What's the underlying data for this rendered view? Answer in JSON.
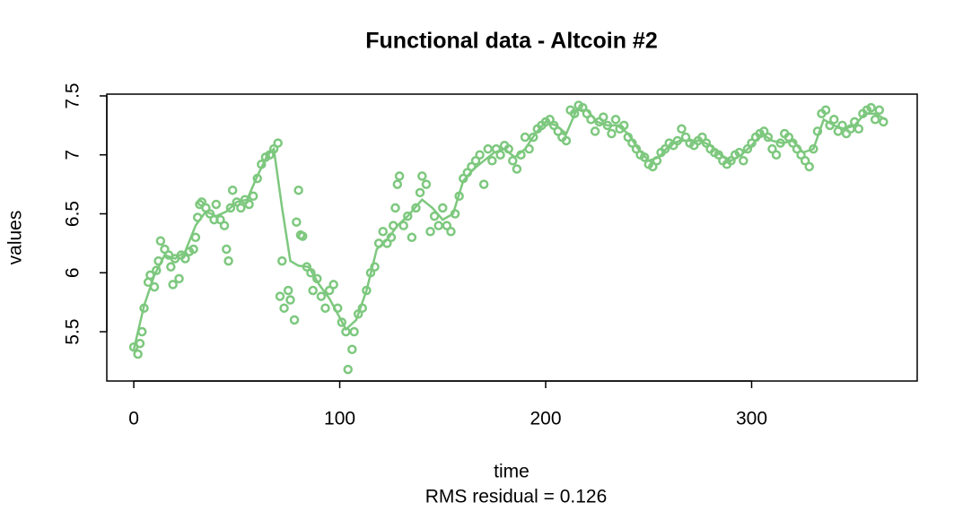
{
  "chart_data": {
    "type": "scatter",
    "title": "Functional data - Altcoin #2",
    "xlabel": "time",
    "ylabel": "values",
    "subtitle": "RMS residual = 0.126",
    "xlim": [
      -13.1,
      380.4
    ],
    "ylim": [
      5.082,
      7.515
    ],
    "xticks": [
      0,
      100,
      200,
      300
    ],
    "yticks": [
      5.5,
      6.0,
      6.5,
      7.0,
      7.5
    ],
    "series": [
      {
        "mode": "points",
        "color": "#7dc87e",
        "x": [
          0,
          2,
          3,
          4,
          5,
          7,
          8,
          10,
          11,
          12,
          13,
          15,
          17,
          18,
          19,
          20,
          22,
          23,
          25,
          27,
          29,
          30,
          31,
          32,
          33,
          35,
          37,
          39,
          40,
          42,
          44,
          45,
          46,
          47,
          48,
          50,
          52,
          54,
          56,
          58,
          60,
          62,
          64,
          66,
          68,
          70,
          71,
          72,
          73,
          75,
          76,
          78,
          79,
          80,
          81,
          82,
          84,
          86,
          87,
          89,
          91,
          93,
          95,
          97,
          99,
          101,
          103,
          104,
          106,
          107,
          109,
          111,
          113,
          115,
          117,
          119,
          121,
          123,
          125,
          126,
          127,
          128,
          129,
          131,
          133,
          135,
          137,
          139,
          140,
          142,
          144,
          146,
          148,
          150,
          152,
          154,
          156,
          158,
          160,
          162,
          164,
          166,
          168,
          170,
          172,
          174,
          176,
          178,
          180,
          182,
          184,
          186,
          188,
          190,
          192,
          194,
          196,
          198,
          200,
          202,
          204,
          206,
          208,
          210,
          212,
          214,
          216,
          218,
          220,
          222,
          224,
          226,
          228,
          230,
          232,
          234,
          236,
          238,
          240,
          242,
          244,
          246,
          248,
          250,
          252,
          254,
          256,
          258,
          260,
          262,
          264,
          266,
          268,
          270,
          272,
          274,
          276,
          278,
          280,
          282,
          284,
          286,
          288,
          290,
          292,
          294,
          296,
          298,
          300,
          302,
          304,
          306,
          308,
          310,
          312,
          314,
          316,
          318,
          320,
          322,
          324,
          326,
          328,
          330,
          332,
          334,
          336,
          338,
          340,
          342,
          344,
          346,
          348,
          350,
          352,
          354,
          356,
          358,
          360,
          362,
          364
        ],
        "values": [
          5.37,
          5.31,
          5.4,
          5.5,
          5.7,
          5.92,
          5.98,
          5.88,
          6.02,
          6.1,
          6.27,
          6.2,
          6.15,
          6.05,
          5.9,
          6.12,
          5.95,
          6.15,
          6.12,
          6.18,
          6.2,
          6.3,
          6.47,
          6.58,
          6.6,
          6.55,
          6.5,
          6.45,
          6.58,
          6.45,
          6.4,
          6.2,
          6.1,
          6.55,
          6.7,
          6.6,
          6.55,
          6.62,
          6.58,
          6.65,
          6.8,
          6.92,
          6.98,
          7.0,
          7.05,
          7.1,
          5.8,
          6.1,
          5.7,
          5.85,
          5.77,
          5.6,
          6.43,
          6.7,
          6.32,
          6.31,
          6.05,
          6.0,
          5.85,
          5.95,
          5.8,
          5.7,
          5.85,
          5.9,
          5.7,
          5.58,
          5.5,
          5.18,
          5.35,
          5.5,
          5.65,
          5.7,
          5.85,
          6.0,
          6.05,
          6.25,
          6.35,
          6.25,
          6.3,
          6.4,
          6.55,
          6.75,
          6.82,
          6.4,
          6.48,
          6.3,
          6.55,
          6.68,
          6.82,
          6.75,
          6.35,
          6.48,
          6.4,
          6.55,
          6.4,
          6.35,
          6.5,
          6.65,
          6.8,
          6.85,
          6.9,
          6.95,
          7.0,
          6.75,
          7.05,
          6.95,
          7.05,
          7.0,
          7.08,
          7.05,
          6.95,
          6.88,
          7.0,
          7.15,
          7.05,
          7.15,
          7.22,
          7.25,
          7.28,
          7.3,
          7.25,
          7.2,
          7.15,
          7.12,
          7.38,
          7.35,
          7.42,
          7.4,
          7.35,
          7.3,
          7.2,
          7.28,
          7.32,
          7.25,
          7.18,
          7.3,
          7.22,
          7.25,
          7.15,
          7.1,
          7.05,
          7.0,
          6.98,
          6.92,
          6.9,
          6.95,
          7.02,
          7.05,
          7.1,
          7.08,
          7.12,
          7.22,
          7.15,
          7.1,
          7.08,
          7.12,
          7.15,
          7.1,
          7.05,
          7.02,
          7.0,
          6.95,
          6.92,
          6.95,
          7.0,
          7.02,
          6.95,
          7.05,
          7.1,
          7.15,
          7.18,
          7.2,
          7.15,
          7.05,
          7.0,
          7.1,
          7.18,
          7.15,
          7.1,
          7.05,
          7.0,
          6.95,
          6.9,
          7.05,
          7.2,
          7.35,
          7.38,
          7.25,
          7.3,
          7.2,
          7.25,
          7.18,
          7.22,
          7.28,
          7.22,
          7.35,
          7.38,
          7.4,
          7.3,
          7.38,
          7.28
        ]
      },
      {
        "mode": "line",
        "color": "#7dc87e",
        "x": [
          0,
          5,
          10,
          15,
          20,
          25,
          30,
          35,
          40,
          45,
          50,
          55,
          60,
          65,
          68,
          72,
          76,
          80,
          85,
          90,
          95,
          100,
          103,
          108,
          113,
          118,
          123,
          128,
          133,
          140,
          145,
          150,
          155,
          160,
          165,
          170,
          175,
          180,
          185,
          190,
          195,
          200,
          205,
          210,
          215,
          220,
          225,
          230,
          235,
          240,
          245,
          250,
          255,
          260,
          265,
          270,
          275,
          280,
          285,
          290,
          295,
          300,
          305,
          310,
          315,
          320,
          325,
          330,
          335,
          340,
          345,
          350,
          355,
          360,
          365
        ],
        "values": [
          5.35,
          5.72,
          5.98,
          6.15,
          6.12,
          6.18,
          6.4,
          6.52,
          6.48,
          6.52,
          6.6,
          6.62,
          6.82,
          7.0,
          7.05,
          6.55,
          6.1,
          6.06,
          6.05,
          5.9,
          5.78,
          5.62,
          5.52,
          5.6,
          5.85,
          6.2,
          6.28,
          6.4,
          6.48,
          6.62,
          6.55,
          6.45,
          6.5,
          6.78,
          6.88,
          6.95,
          7.02,
          7.05,
          6.98,
          7.05,
          7.18,
          7.28,
          7.25,
          7.18,
          7.38,
          7.38,
          7.28,
          7.25,
          7.25,
          7.18,
          7.05,
          6.95,
          6.98,
          7.08,
          7.12,
          7.12,
          7.12,
          7.08,
          7.0,
          6.95,
          7.0,
          7.08,
          7.18,
          7.12,
          7.1,
          7.12,
          7.02,
          7.05,
          7.3,
          7.25,
          7.22,
          7.25,
          7.35,
          7.35,
          7.3
        ]
      }
    ]
  }
}
